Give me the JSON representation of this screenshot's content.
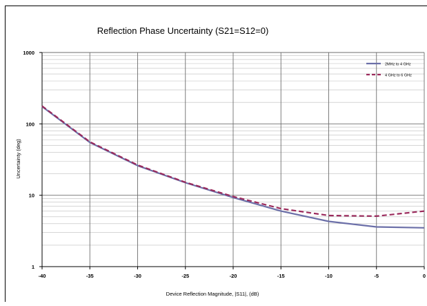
{
  "chart_data": {
    "type": "line",
    "title": "Reflection Phase Uncertainty  (S21=S12=0)",
    "xlabel": "Device Reflection Magnitude, |S11|, (dB)",
    "ylabel": "Uncertainty  (deg)",
    "x_ticks": [
      "-40",
      "-35",
      "-30",
      "-25",
      "-20",
      "-15",
      "-10",
      "-5",
      "0"
    ],
    "y_ticks": [
      "1",
      "10",
      "100",
      "1000"
    ],
    "xlim": [
      -40,
      0
    ],
    "ylim": [
      1,
      1000
    ],
    "yscale": "log",
    "grid": true,
    "legend_position": "top-right",
    "x": [
      -40,
      -35,
      -30,
      -25,
      -20,
      -15,
      -10,
      -5,
      0
    ],
    "series": [
      {
        "name": "2MHz to 4 GHz",
        "color": "#6b6fa8",
        "dash": "solid",
        "values": [
          175,
          55,
          26,
          15,
          9.3,
          6.0,
          4.3,
          3.6,
          3.5
        ]
      },
      {
        "name": "4 GHz to 6 GHz",
        "color": "#9b2a5c",
        "dash": "dashed",
        "values": [
          178,
          56,
          26.5,
          15.2,
          9.6,
          6.5,
          5.2,
          5.1,
          6.0
        ]
      }
    ]
  }
}
